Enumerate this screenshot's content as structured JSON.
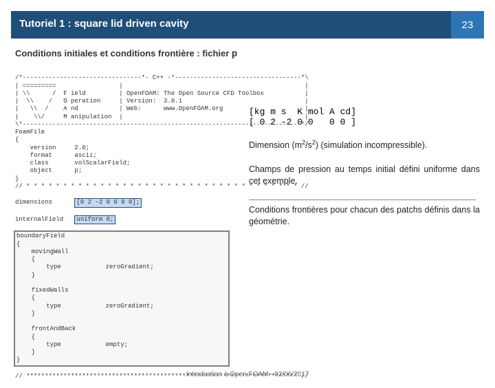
{
  "header": {
    "title": "Tutoriel 1 : square lid driven cavity",
    "page_number": "23"
  },
  "subtitle": {
    "prefix": "Conditions initiales et conditions frontière : fichier ",
    "file": "p"
  },
  "right": {
    "dim_line1": "[kg m s  K mol A cd]",
    "dim_line2": "[ 0 2 -2 0 0   0 0 ]",
    "p1a": "Dimension (m",
    "p1b": "/s",
    "p1c": ") (simulation incompressible).",
    "p2": "Champs de pression au temps initial défini uniforme dans cet exemple.",
    "p3": "Conditions frontières pour chacun des patchs définis dans la géométrie."
  },
  "code": {
    "banner_l1": "/*--------------------------------*- C++ -*----------------------------------*\\",
    "banner_l2": "| =========                 |                                                 |",
    "banner_l3": "| \\\\      /  F ield         | OpenFOAM: The Open Source CFD Toolbox           |",
    "banner_l4": "|  \\\\    /   O peration     | Version:  3.0.1                                 |",
    "banner_l5": "|   \\\\  /    A nd           | Web:      www.OpenFOAM.org                      |",
    "banner_l6": "|    \\\\/     M anipulation  |                                                 |",
    "banner_l7": "\\*---------------------------------------------------------------------------*/",
    "ff": "FoamFile",
    "br_o": "{",
    "v": "    version     2.0;",
    "fmt": "    format      ascii;",
    "cls": "    class       volScalarField;",
    "obj": "    object      p;",
    "br_c": "}",
    "divider": "// * * * * * * * * * * * * * * * * * * * * * * * * * * * * * * * * * * * * * //",
    "dim_pre": "dimensions      ",
    "dim_hl": "[0 2 -2 0 0 0 0];",
    "if_pre": "internalField   ",
    "if_hl": "uniform 0;",
    "bf": "boundaryField",
    "bf_o": "{",
    "mw": "    movingWall",
    "mw_o": "    {",
    "mw_t": "        type            zeroGradient;",
    "mw_c": "    }",
    "blank": "",
    "fw": "    fixedWalls",
    "fw_o": "    {",
    "fw_t": "        type            zeroGradient;",
    "fw_c": "    }",
    "fab": "    frontAndBack",
    "fab_o": "    {",
    "fab_t": "        type            empty;",
    "fab_c": "    }",
    "bf_c": "}",
    "end": "// ************************************************************************* //"
  },
  "footer": {
    "text": "Introduction à Open.FOAM - 02/06/2017"
  },
  "colors": {
    "primary": "#1f4e79",
    "accent": "#2e75b6",
    "highlight": "#c5d9f1"
  }
}
